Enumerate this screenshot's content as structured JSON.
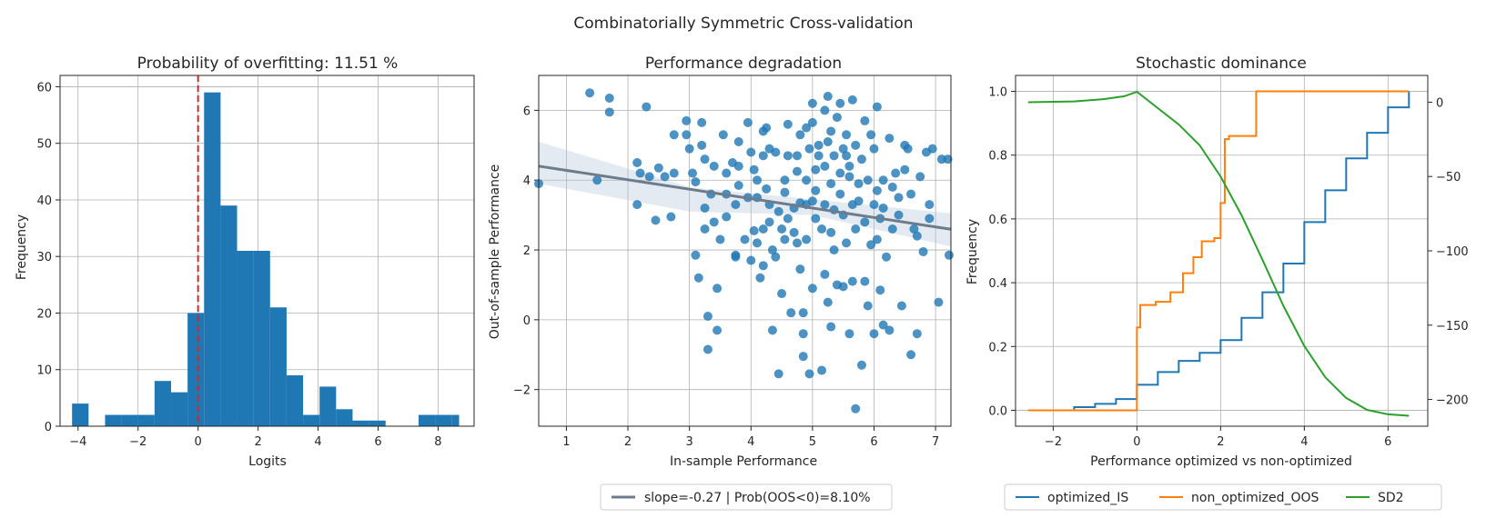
{
  "suptitle": "Combinatorially Symmetric Cross-validation",
  "colors": {
    "blue": "#1f77b4",
    "orange": "#ff7f0e",
    "green": "#2ca02c",
    "red": "#d62728",
    "regression": "#6e7b8a",
    "band": "#b0c4d8",
    "grid": "#b0b0b0"
  },
  "chart_data": [
    {
      "type": "bar",
      "title": "Probability of overfitting: 11.51 %",
      "xlabel": "Logits",
      "ylabel": "Frequency",
      "xlim": [
        -4.6,
        9.2
      ],
      "ylim": [
        0,
        62
      ],
      "xticks": [
        -4,
        -2,
        0,
        2,
        4,
        6,
        8
      ],
      "yticks": [
        0,
        10,
        20,
        30,
        40,
        50,
        60
      ],
      "grid": true,
      "vline": {
        "x": 0,
        "style": "dashed",
        "color": "#d62728"
      },
      "bins": [
        {
          "x0": -4.2,
          "x1": -3.65,
          "count": 4
        },
        {
          "x0": -3.65,
          "x1": -3.1,
          "count": 0
        },
        {
          "x0": -3.1,
          "x1": -2.55,
          "count": 2
        },
        {
          "x0": -2.55,
          "x1": -2.0,
          "count": 2
        },
        {
          "x0": -2.0,
          "x1": -1.45,
          "count": 2
        },
        {
          "x0": -1.45,
          "x1": -0.9,
          "count": 8
        },
        {
          "x0": -0.9,
          "x1": -0.35,
          "count": 6
        },
        {
          "x0": -0.35,
          "x1": 0.2,
          "count": 20
        },
        {
          "x0": 0.2,
          "x1": 0.75,
          "count": 59
        },
        {
          "x0": 0.75,
          "x1": 1.3,
          "count": 39
        },
        {
          "x0": 1.3,
          "x1": 1.85,
          "count": 31
        },
        {
          "x0": 1.85,
          "x1": 2.4,
          "count": 31
        },
        {
          "x0": 2.4,
          "x1": 2.95,
          "count": 21
        },
        {
          "x0": 2.95,
          "x1": 3.5,
          "count": 9
        },
        {
          "x0": 3.5,
          "x1": 4.05,
          "count": 2
        },
        {
          "x0": 4.05,
          "x1": 4.6,
          "count": 7
        },
        {
          "x0": 4.6,
          "x1": 5.15,
          "count": 3
        },
        {
          "x0": 5.15,
          "x1": 5.7,
          "count": 1
        },
        {
          "x0": 5.7,
          "x1": 6.25,
          "count": 1
        },
        {
          "x0": 6.25,
          "x1": 6.8,
          "count": 0
        },
        {
          "x0": 6.8,
          "x1": 7.35,
          "count": 0
        },
        {
          "x0": 7.35,
          "x1": 7.9,
          "count": 2
        },
        {
          "x0": 7.9,
          "x1": 8.45,
          "count": 2
        },
        {
          "x0": 8.45,
          "x1": 8.7,
          "count": 2
        }
      ]
    },
    {
      "type": "scatter",
      "title": "Performance degradation",
      "xlabel": "In-sample Performance",
      "ylabel": "Out-of-sample Performance",
      "xlim": [
        0.55,
        7.25
      ],
      "ylim": [
        -3.05,
        7.0
      ],
      "xticks": [
        1,
        2,
        3,
        4,
        5,
        6,
        7
      ],
      "yticks": [
        -2,
        0,
        2,
        4,
        6
      ],
      "grid": true,
      "regression": {
        "slope": -0.27,
        "intercept": 4.55,
        "band": [
          [
            0.55,
            3.9,
            5.1
          ],
          [
            3.0,
            3.1,
            3.8
          ],
          [
            5.0,
            3.0,
            3.45
          ],
          [
            7.25,
            2.1,
            3.05
          ]
        ]
      },
      "legend": "slope=-0.27 | Prob(OOS<0)=8.10%",
      "legend_placement": "below",
      "points": [
        [
          0.55,
          3.9
        ],
        [
          1.38,
          6.5
        ],
        [
          1.5,
          4.0
        ],
        [
          1.7,
          6.35
        ],
        [
          1.7,
          5.95
        ],
        [
          2.15,
          4.5
        ],
        [
          2.15,
          3.3
        ],
        [
          2.2,
          4.2
        ],
        [
          2.3,
          6.1
        ],
        [
          2.35,
          4.1
        ],
        [
          2.45,
          2.85
        ],
        [
          2.5,
          4.35
        ],
        [
          2.6,
          4.1
        ],
        [
          2.7,
          2.95
        ],
        [
          2.75,
          4.2
        ],
        [
          2.75,
          5.3
        ],
        [
          2.95,
          5.7
        ],
        [
          2.95,
          5.3
        ],
        [
          3.0,
          4.9
        ],
        [
          3.05,
          4.2
        ],
        [
          3.1,
          3.95
        ],
        [
          3.1,
          1.85
        ],
        [
          3.15,
          1.2
        ],
        [
          3.2,
          5.65
        ],
        [
          3.2,
          5.0
        ],
        [
          3.25,
          3.2
        ],
        [
          3.25,
          2.6
        ],
        [
          3.3,
          0.1
        ],
        [
          3.3,
          -0.85
        ],
        [
          3.35,
          3.6
        ],
        [
          3.4,
          2.8
        ],
        [
          3.45,
          0.9
        ],
        [
          3.45,
          -0.3
        ],
        [
          3.5,
          2.3
        ],
        [
          3.6,
          4.2
        ],
        [
          3.6,
          3.6
        ],
        [
          3.7,
          4.5
        ],
        [
          3.75,
          1.85
        ],
        [
          3.75,
          1.8
        ],
        [
          3.75,
          3.3
        ],
        [
          3.8,
          5.1
        ],
        [
          3.8,
          3.85
        ],
        [
          3.9,
          2.3
        ],
        [
          3.95,
          5.65
        ],
        [
          4.0,
          4.8
        ],
        [
          4.05,
          4.3
        ],
        [
          4.1,
          4.0
        ],
        [
          4.1,
          3.5
        ],
        [
          4.1,
          2.2
        ],
        [
          4.15,
          1.2
        ],
        [
          4.2,
          5.4
        ],
        [
          4.2,
          4.7
        ],
        [
          4.2,
          2.6
        ],
        [
          4.2,
          1.55
        ],
        [
          4.25,
          5.5
        ],
        [
          4.3,
          4.9
        ],
        [
          4.3,
          3.3
        ],
        [
          4.35,
          -0.3
        ],
        [
          4.35,
          2.0
        ],
        [
          4.4,
          4.8
        ],
        [
          4.4,
          1.8
        ],
        [
          4.45,
          -1.55
        ],
        [
          4.5,
          2.6
        ],
        [
          4.5,
          0.75
        ],
        [
          4.55,
          4.0
        ],
        [
          4.55,
          3.65
        ],
        [
          4.6,
          5.6
        ],
        [
          4.6,
          2.9
        ],
        [
          4.65,
          0.2
        ],
        [
          4.7,
          2.5
        ],
        [
          4.7,
          3.2
        ],
        [
          4.75,
          4.7
        ],
        [
          4.75,
          4.25
        ],
        [
          4.8,
          3.35
        ],
        [
          4.8,
          1.45
        ],
        [
          4.85,
          0.2
        ],
        [
          4.85,
          -0.4
        ],
        [
          4.85,
          -1.05
        ],
        [
          4.9,
          2.3
        ],
        [
          4.9,
          4.0
        ],
        [
          4.95,
          -1.55
        ],
        [
          4.95,
          4.9
        ],
        [
          5.0,
          6.2
        ],
        [
          5.0,
          5.65
        ],
        [
          5.0,
          3.4
        ],
        [
          5.0,
          0.9
        ],
        [
          5.05,
          2.9
        ],
        [
          5.05,
          4.3
        ],
        [
          5.1,
          5.0
        ],
        [
          5.15,
          2.6
        ],
        [
          5.15,
          -1.45
        ],
        [
          5.2,
          6.0
        ],
        [
          5.2,
          3.3
        ],
        [
          5.2,
          1.3
        ],
        [
          5.25,
          6.4
        ],
        [
          5.25,
          0.5
        ],
        [
          5.3,
          5.4
        ],
        [
          5.3,
          3.9
        ],
        [
          5.3,
          -0.2
        ],
        [
          5.35,
          4.7
        ],
        [
          5.35,
          2.0
        ],
        [
          5.4,
          5.8
        ],
        [
          5.4,
          1.0
        ],
        [
          5.45,
          6.2
        ],
        [
          5.5,
          4.9
        ],
        [
          5.5,
          3.0
        ],
        [
          5.5,
          0.95
        ],
        [
          5.55,
          5.3
        ],
        [
          5.55,
          2.2
        ],
        [
          5.6,
          4.4
        ],
        [
          5.6,
          -0.4
        ],
        [
          5.65,
          6.3
        ],
        [
          5.65,
          1.1
        ],
        [
          5.7,
          -2.55
        ],
        [
          5.7,
          5.0
        ],
        [
          5.75,
          3.4
        ],
        [
          5.8,
          -1.3
        ],
        [
          5.8,
          4.6
        ],
        [
          5.85,
          2.8
        ],
        [
          5.85,
          1.1
        ],
        [
          5.9,
          4.0
        ],
        [
          5.9,
          0.4
        ],
        [
          5.95,
          5.3
        ],
        [
          5.95,
          2.15
        ],
        [
          6.0,
          -0.4
        ],
        [
          6.0,
          4.9
        ],
        [
          6.05,
          6.1
        ],
        [
          6.05,
          3.7
        ],
        [
          6.1,
          2.9
        ],
        [
          6.1,
          0.85
        ],
        [
          6.15,
          4.0
        ],
        [
          6.15,
          -0.15
        ],
        [
          6.2,
          1.8
        ],
        [
          6.25,
          5.2
        ],
        [
          6.25,
          -0.3
        ],
        [
          6.3,
          2.6
        ],
        [
          6.35,
          4.2
        ],
        [
          6.4,
          3.0
        ],
        [
          6.45,
          0.4
        ],
        [
          6.5,
          5.0
        ],
        [
          6.5,
          4.3
        ],
        [
          6.55,
          4.9
        ],
        [
          6.6,
          -1.0
        ],
        [
          6.65,
          2.6
        ],
        [
          6.7,
          -0.4
        ],
        [
          6.75,
          4.1
        ],
        [
          6.8,
          1.95
        ],
        [
          6.85,
          4.8
        ],
        [
          6.9,
          3.3
        ],
        [
          6.95,
          4.9
        ],
        [
          7.05,
          0.5
        ],
        [
          7.1,
          4.6
        ],
        [
          7.2,
          4.6
        ],
        [
          7.22,
          1.85
        ],
        [
          3.55,
          5.3
        ],
        [
          3.8,
          4.4
        ],
        [
          3.95,
          3.5
        ],
        [
          4.05,
          2.55
        ],
        [
          4.25,
          3.75
        ],
        [
          4.45,
          3.1
        ],
        [
          4.6,
          4.7
        ],
        [
          4.75,
          2.2
        ],
        [
          4.9,
          5.5
        ],
        [
          5.05,
          3.7
        ],
        [
          5.2,
          4.4
        ],
        [
          5.3,
          2.5
        ],
        [
          5.45,
          3.6
        ],
        [
          5.6,
          4.1
        ],
        [
          5.7,
          2.6
        ],
        [
          5.85,
          5.7
        ],
        [
          6.0,
          3.3
        ],
        [
          6.3,
          3.8
        ],
        [
          6.6,
          3.6
        ],
        [
          6.9,
          2.9
        ],
        [
          3.25,
          4.6
        ],
        [
          3.4,
          4.4
        ],
        [
          3.6,
          2.95
        ],
        [
          4.0,
          1.7
        ],
        [
          4.3,
          2.8
        ],
        [
          4.55,
          2.3
        ],
        [
          4.8,
          5.3
        ],
        [
          5.1,
          4.7
        ],
        [
          5.35,
          3.15
        ],
        [
          5.55,
          4.7
        ],
        [
          5.75,
          3.9
        ],
        [
          6.05,
          2.3
        ],
        [
          6.4,
          3.5
        ],
        [
          6.7,
          2.4
        ],
        [
          4.9,
          3.3
        ],
        [
          5.25,
          5.1
        ],
        [
          5.45,
          4.2
        ],
        [
          5.65,
          3.3
        ],
        [
          6.15,
          3.2
        ]
      ]
    },
    {
      "type": "line",
      "title": "Stochastic dominance",
      "xlabel": "Performance optimized vs non-optimized",
      "ylabel": "Frequency",
      "xlim": [
        -2.9,
        6.95
      ],
      "ylim": [
        -0.05,
        1.05
      ],
      "y2lim": [
        -218,
        18
      ],
      "xticks": [
        -2,
        0,
        2,
        4,
        6
      ],
      "yticks": [
        0.0,
        0.2,
        0.4,
        0.6,
        0.8,
        1.0
      ],
      "y2ticks": [
        0,
        -50,
        -100,
        -150,
        -200
      ],
      "grid": true,
      "legend_placement": "below",
      "series": [
        {
          "name": "optimized_IS",
          "color": "#1f77b4",
          "axis": "left",
          "step": true,
          "x": [
            -2.6,
            -1.5,
            -1.0,
            -0.5,
            0.0,
            0.5,
            1.0,
            1.5,
            2.0,
            2.5,
            3.0,
            3.5,
            4.0,
            4.5,
            5.0,
            5.5,
            6.0,
            6.5
          ],
          "y": [
            0.0,
            0.01,
            0.02,
            0.035,
            0.08,
            0.12,
            0.155,
            0.18,
            0.22,
            0.29,
            0.37,
            0.46,
            0.59,
            0.69,
            0.79,
            0.87,
            0.95,
            1.0
          ]
        },
        {
          "name": "non_optimized_OOS",
          "color": "#ff7f0e",
          "axis": "left",
          "step": true,
          "x": [
            -2.6,
            -0.02,
            0.0,
            0.08,
            0.45,
            0.8,
            1.1,
            1.35,
            1.55,
            1.85,
            2.0,
            2.1,
            2.2,
            2.6,
            2.85,
            6.5
          ],
          "y": [
            0.0,
            0.0,
            0.26,
            0.33,
            0.34,
            0.37,
            0.43,
            0.48,
            0.53,
            0.54,
            0.65,
            0.85,
            0.86,
            0.86,
            1.0,
            1.0
          ]
        },
        {
          "name": "SD2",
          "color": "#2ca02c",
          "axis": "right",
          "step": false,
          "x": [
            -2.6,
            -1.5,
            -0.8,
            -0.3,
            0.0,
            0.5,
            1.0,
            1.5,
            2.0,
            2.5,
            3.0,
            3.5,
            4.0,
            4.5,
            5.0,
            5.5,
            6.0,
            6.5
          ],
          "y": [
            0,
            0.5,
            2,
            4,
            7,
            -4,
            -15,
            -29,
            -50,
            -76,
            -106,
            -137,
            -164,
            -185,
            -199,
            -207,
            -210,
            -211
          ]
        }
      ]
    }
  ]
}
